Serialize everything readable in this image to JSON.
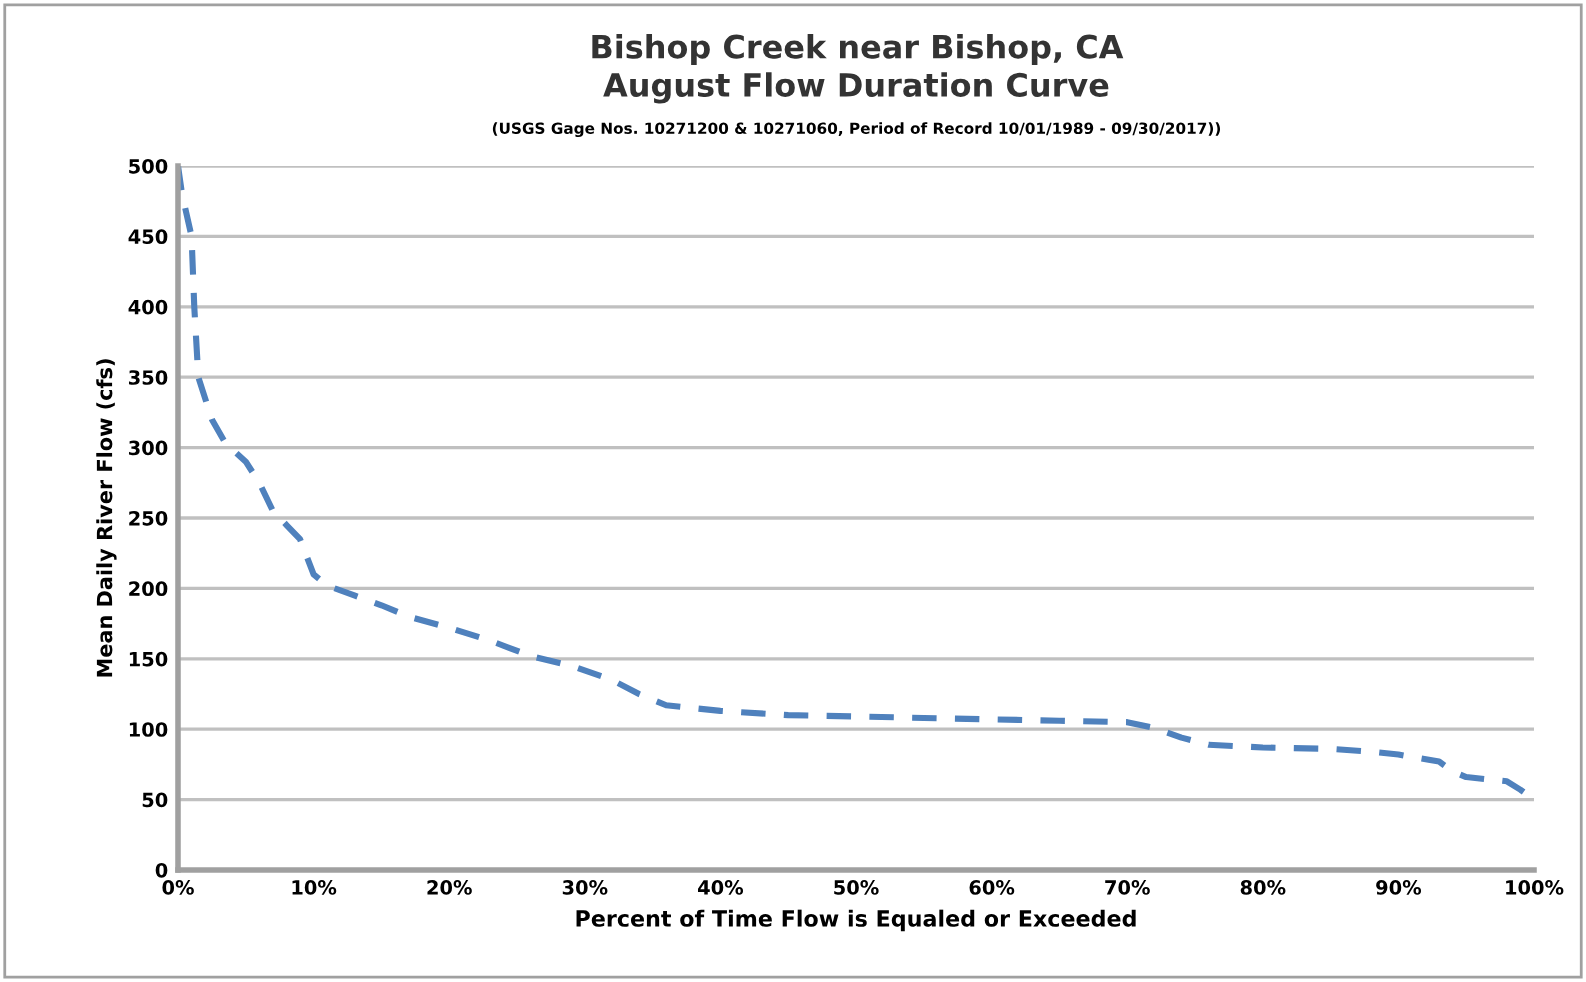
{
  "chart_data": {
    "type": "line",
    "title": "Bishop Creek near Bishop, CA\nAugust Flow Duration Curve",
    "subtitle": "(USGS Gage Nos. 10271200 & 10271060, Period of Record 10/01/1989 - 09/30/2017))",
    "xlabel": "Percent of Time Flow is Equaled or Exceeded",
    "ylabel": "Mean Daily River Flow (cfs)",
    "x": [
      0,
      0.3,
      1,
      1.2,
      1.5,
      2.5,
      3.5,
      5,
      6,
      7,
      8,
      9,
      10,
      11,
      13,
      15,
      17,
      20,
      23,
      26,
      29,
      32,
      34,
      36,
      40,
      45,
      50,
      55,
      60,
      65,
      70,
      72,
      74,
      76,
      80,
      85,
      88,
      90,
      93,
      94,
      95,
      97,
      98,
      99,
      100
    ],
    "series": [
      {
        "color": "#4f81bd",
        "values": [
          500,
          480,
          450,
          400,
          350,
          320,
          303,
          290,
          275,
          255,
          245,
          235,
          210,
          202,
          195,
          188,
          180,
          172,
          163,
          152,
          145,
          135,
          125,
          117,
          113,
          110,
          109,
          108,
          107,
          106,
          105,
          101,
          94,
          89,
          87,
          86,
          84,
          82,
          77,
          70,
          66,
          64,
          63,
          57,
          50
        ]
      }
    ],
    "xlim": [
      0,
      100
    ],
    "xticks": [
      {
        "value": 0,
        "label": "0%"
      },
      {
        "value": 10,
        "label": "10%"
      },
      {
        "value": 20,
        "label": "20%"
      },
      {
        "value": 30,
        "label": "30%"
      },
      {
        "value": 40,
        "label": "40%"
      },
      {
        "value": 50,
        "label": "50%"
      },
      {
        "value": 60,
        "label": "60%"
      },
      {
        "value": 70,
        "label": "70%"
      },
      {
        "value": 80,
        "label": "80%"
      },
      {
        "value": 90,
        "label": "90%"
      },
      {
        "value": 100,
        "label": "100%"
      }
    ],
    "ylim": [
      0,
      500
    ],
    "yticks": [
      0,
      50,
      100,
      150,
      200,
      250,
      300,
      350,
      400,
      450,
      500
    ],
    "grid": "y",
    "line_style": "dashed",
    "marker": "none",
    "legend": false
  }
}
